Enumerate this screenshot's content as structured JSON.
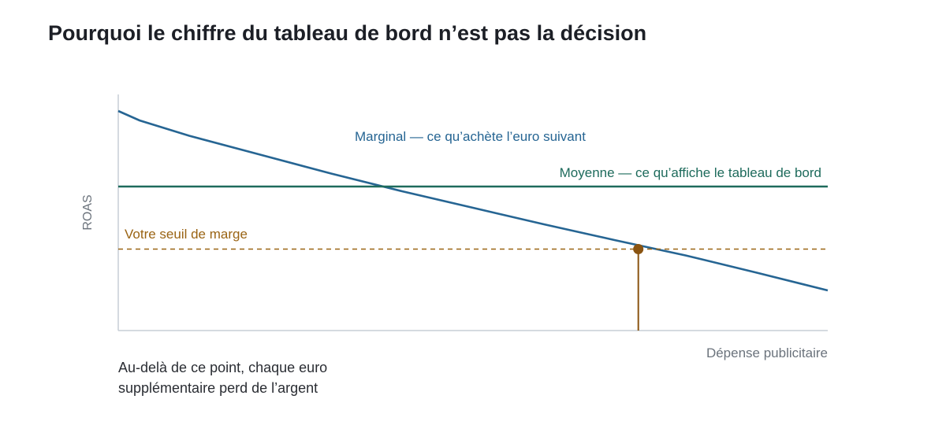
{
  "page": {
    "title": "Pourquoi le chiffre du tableau de bord n’est pas la décision",
    "note": "Au-delà de ce point, chaque euro supplémentaire perd de l’argent"
  },
  "chart_data": {
    "type": "line",
    "xlabel": "Dépense publicitaire",
    "ylabel": "ROAS",
    "xlim": [
      0,
      100
    ],
    "ylim": [
      0,
      100
    ],
    "grid": false,
    "legend": "none",
    "series": [
      {
        "name": "Marginal — ce qu’achète l’euro suivant",
        "color": "#266593",
        "style": "solid",
        "x": [
          0,
          3,
          10,
          20,
          30,
          40,
          50,
          60,
          70,
          80,
          90,
          100
        ],
        "y": [
          93,
          89,
          82.5,
          74.5,
          66.5,
          59,
          52,
          45,
          38.3,
          31.8,
          24.5,
          17
        ]
      },
      {
        "name": "Moyenne — ce qu’affiche le tableau de bord",
        "color": "#1e6b5c",
        "style": "solid",
        "x": [
          0,
          100
        ],
        "y": [
          61,
          61
        ]
      },
      {
        "name": "Votre seuil de marge",
        "color": "#9a6414",
        "style": "dashed",
        "x": [
          0,
          100
        ],
        "y": [
          34.5,
          34.5
        ]
      }
    ],
    "annotations": [
      {
        "type": "point",
        "x": 73.3,
        "y": 34.5,
        "color": "#8a5411",
        "drop_line": true
      }
    ]
  }
}
